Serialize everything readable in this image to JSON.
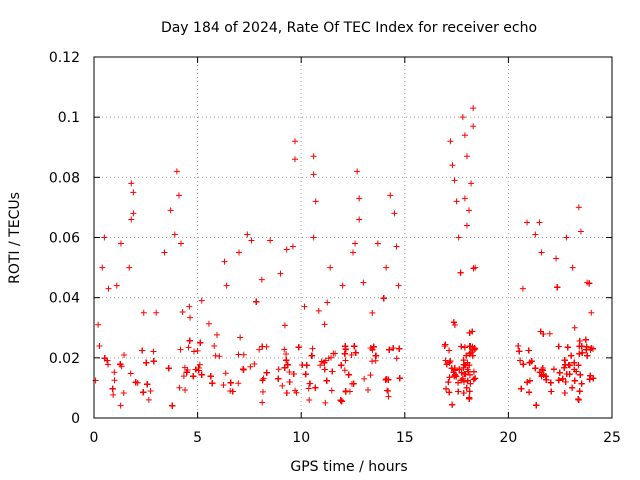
{
  "chart_data": {
    "type": "scatter",
    "title": "Day 184 of 2024, Rate Of TEC Index for receiver echo",
    "xlabel": "GPS time / hours",
    "ylabel": "ROTI / TECUs",
    "xlim": [
      0,
      25
    ],
    "ylim": [
      0,
      0.12
    ],
    "x_ticks": [
      0,
      5,
      10,
      15,
      20,
      25
    ],
    "x_tick_labels": [
      "0",
      "5",
      "10",
      "15",
      "20",
      "25"
    ],
    "y_ticks": [
      0,
      0.02,
      0.04,
      0.06,
      0.08,
      0.1,
      0.12
    ],
    "y_tick_labels": [
      "0",
      "0.02",
      "0.04",
      "0.06",
      "0.08",
      "0.1",
      "0.12"
    ],
    "grid": true,
    "marker": "+",
    "color": "#ff0000",
    "series": [
      {
        "name": "ROTI",
        "points": [
          [
            0.2,
            0.031
          ],
          [
            0.4,
            0.05
          ],
          [
            0.5,
            0.06
          ],
          [
            0.7,
            0.043
          ],
          [
            1.1,
            0.044
          ],
          [
            1.3,
            0.058
          ],
          [
            1.8,
            0.078
          ],
          [
            1.9,
            0.075
          ],
          [
            1.8,
            0.066
          ],
          [
            1.9,
            0.068
          ],
          [
            1.7,
            0.05
          ],
          [
            2.4,
            0.035
          ],
          [
            3.0,
            0.035
          ],
          [
            3.4,
            0.055
          ],
          [
            3.7,
            0.069
          ],
          [
            3.9,
            0.061
          ],
          [
            4.0,
            0.082
          ],
          [
            4.1,
            0.074
          ],
          [
            4.2,
            0.058
          ],
          [
            5.2,
            0.039
          ],
          [
            6.4,
            0.044
          ],
          [
            6.3,
            0.052
          ],
          [
            7.0,
            0.055
          ],
          [
            7.4,
            0.061
          ],
          [
            7.6,
            0.059
          ],
          [
            8.1,
            0.046
          ],
          [
            8.5,
            0.059
          ],
          [
            9.0,
            0.048
          ],
          [
            9.3,
            0.056
          ],
          [
            9.7,
            0.092
          ],
          [
            9.7,
            0.086
          ],
          [
            9.6,
            0.057
          ],
          [
            10.6,
            0.087
          ],
          [
            10.6,
            0.081
          ],
          [
            10.7,
            0.072
          ],
          [
            10.6,
            0.06
          ],
          [
            11.4,
            0.05
          ],
          [
            12.0,
            0.044
          ],
          [
            12.5,
            0.055
          ],
          [
            12.7,
            0.082
          ],
          [
            12.8,
            0.073
          ],
          [
            12.8,
            0.066
          ],
          [
            12.6,
            0.058
          ],
          [
            13.0,
            0.045
          ],
          [
            13.7,
            0.058
          ],
          [
            14.1,
            0.05
          ],
          [
            14.3,
            0.074
          ],
          [
            14.5,
            0.068
          ],
          [
            14.6,
            0.057
          ],
          [
            14.7,
            0.044
          ],
          [
            17.2,
            0.092
          ],
          [
            17.3,
            0.084
          ],
          [
            17.4,
            0.079
          ],
          [
            17.5,
            0.072
          ],
          [
            17.8,
            0.1
          ],
          [
            17.9,
            0.094
          ],
          [
            18.0,
            0.087
          ],
          [
            17.9,
            0.073
          ],
          [
            18.3,
            0.103
          ],
          [
            18.3,
            0.097
          ],
          [
            18.2,
            0.078
          ],
          [
            18.1,
            0.069
          ],
          [
            18.0,
            0.064
          ],
          [
            17.6,
            0.06
          ],
          [
            18.4,
            0.05
          ],
          [
            20.9,
            0.065
          ],
          [
            21.3,
            0.061
          ],
          [
            21.6,
            0.055
          ],
          [
            21.5,
            0.065
          ],
          [
            22.3,
            0.053
          ],
          [
            22.8,
            0.06
          ],
          [
            23.1,
            0.05
          ],
          [
            23.4,
            0.07
          ],
          [
            23.5,
            0.062
          ],
          [
            23.8,
            0.045
          ],
          [
            24.0,
            0.035
          ],
          [
            23.2,
            0.03
          ],
          [
            22.0,
            0.028
          ],
          [
            20.7,
            0.043
          ]
        ]
      }
    ],
    "dense_bands": [
      {
        "x_range": [
          0,
          14.8
        ],
        "y_range": [
          0.003,
          0.04
        ]
      },
      {
        "x_range": [
          16.9,
          18.4
        ],
        "y_range": [
          0.003,
          0.05
        ]
      },
      {
        "x_range": [
          20.4,
          24.1
        ],
        "y_range": [
          0.003,
          0.045
        ]
      }
    ]
  }
}
